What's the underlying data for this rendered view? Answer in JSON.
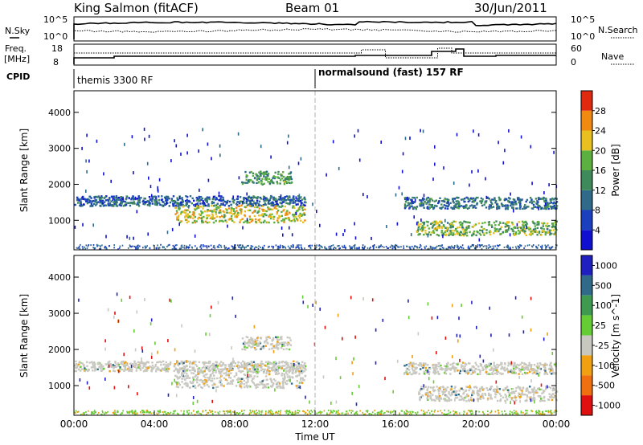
{
  "header": {
    "title": "King Salmon (fitACF)",
    "beam": "Beam 01",
    "date": "30/Jun/2011"
  },
  "summary_panel": {
    "left_label": "N.Sky",
    "right_label": "N.Search",
    "left_ticks": [
      "10^5",
      "10^0"
    ],
    "right_ticks": [
      "10^5",
      "10^0"
    ]
  },
  "freq_panel": {
    "left_label_1": "Freq.",
    "left_label_2": "[MHz]",
    "right_label": "Nave",
    "left_ticks": [
      "18",
      "8"
    ],
    "right_ticks": [
      "60",
      "0"
    ]
  },
  "cpid": {
    "label": "CPID",
    "segments": [
      {
        "start_hour": 0,
        "text": "themis 3300 RF"
      },
      {
        "start_hour": 12,
        "text": "normalsound (fast) 157 RF"
      }
    ]
  },
  "chart_data": [
    {
      "type": "heatmap",
      "title": "",
      "xlabel": "",
      "ylabel": "Slant Range [km]",
      "x_range_hours": [
        0,
        24
      ],
      "ylim": [
        180,
        4600
      ],
      "yticks": [
        1000,
        2000,
        3000,
        4000
      ],
      "colorbar": {
        "label": "Power [dB]",
        "ticks": [
          "4",
          "8",
          "12",
          "16",
          "20",
          "24",
          "28"
        ],
        "range": [
          0,
          32
        ],
        "colors": [
          "#1010d0",
          "#1a40c0",
          "#2f6a8a",
          "#3f8a5a",
          "#5cb040",
          "#e8c020",
          "#f08a10",
          "#e02a10"
        ]
      },
      "echo_bands": [
        {
          "start_hour": 0,
          "end_hour": 11.5,
          "range_km": 1560,
          "width_km": 140,
          "value": 8
        },
        {
          "start_hour": 5,
          "end_hour": 11.5,
          "range_km": 1200,
          "width_km": 240,
          "value": 22
        },
        {
          "start_hour": 8.3,
          "end_hour": 10.8,
          "range_km": 2200,
          "width_km": 180,
          "value": 14
        },
        {
          "start_hour": 16.4,
          "end_hour": 24,
          "range_km": 1500,
          "width_km": 160,
          "value": 10
        },
        {
          "start_hour": 17,
          "end_hour": 24,
          "range_km": 800,
          "width_km": 200,
          "value": 18
        }
      ]
    },
    {
      "type": "heatmap",
      "title": "",
      "xlabel": "Time UT",
      "ylabel": "Slant Range [km]",
      "x_range_hours": [
        0,
        24
      ],
      "ylim": [
        180,
        4600
      ],
      "yticks": [
        1000,
        2000,
        3000,
        4000
      ],
      "xticks": [
        "00:00",
        "04:00",
        "08:00",
        "12:00",
        "16:00",
        "20:00",
        "00:00"
      ],
      "colorbar": {
        "label": "Velocity [m s^-1]",
        "ticks": [
          "1000",
          "500",
          "100",
          "25",
          "-25",
          "-100",
          "-500",
          "-1000"
        ],
        "colors": [
          "#2020c0",
          "#2f6a8a",
          "#3f9a50",
          "#66cc33",
          "#c8c8c0",
          "#f0a010",
          "#f07010",
          "#e01010"
        ]
      },
      "echo_bands": [
        {
          "start_hour": 0,
          "end_hour": 11.5,
          "range_km": 1560,
          "width_km": 140,
          "value": 0
        },
        {
          "start_hour": 5,
          "end_hour": 11.5,
          "range_km": 1200,
          "width_km": 240,
          "value": 0
        },
        {
          "start_hour": 8.3,
          "end_hour": 10.8,
          "range_km": 2200,
          "width_km": 180,
          "value": 0
        },
        {
          "start_hour": 16.4,
          "end_hour": 24,
          "range_km": 1500,
          "width_km": 160,
          "value": 0
        },
        {
          "start_hour": 17,
          "end_hour": 24,
          "range_km": 800,
          "width_km": 200,
          "value": -25
        }
      ]
    }
  ]
}
